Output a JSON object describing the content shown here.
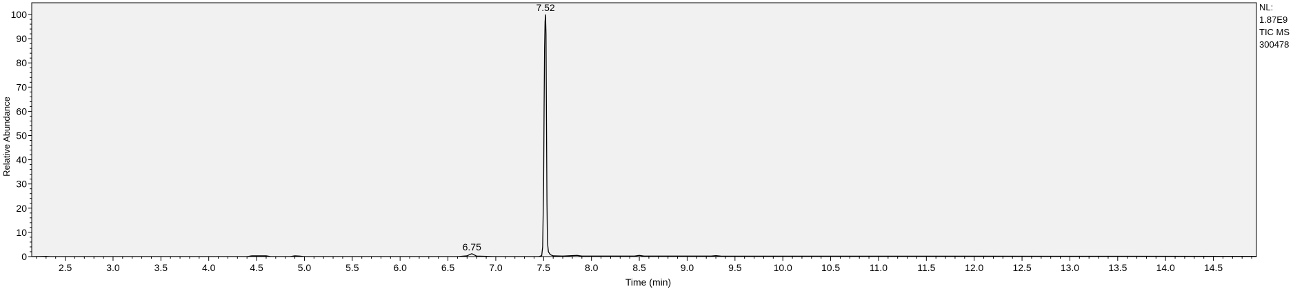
{
  "chart_data": {
    "type": "line",
    "title": "",
    "xlabel": "Time (min)",
    "ylabel": "Relative Abundance",
    "xlim": [
      2.15,
      14.95
    ],
    "ylim": [
      0,
      100
    ],
    "x_ticks": [
      "2.5",
      "3.0",
      "3.5",
      "4.0",
      "4.5",
      "5.0",
      "5.5",
      "6.0",
      "6.5",
      "7.0",
      "7.5",
      "8.0",
      "8.5",
      "9.0",
      "9.5",
      "10.0",
      "10.5",
      "11.0",
      "11.5",
      "12.0",
      "12.5",
      "13.0",
      "13.5",
      "14.0",
      "14.5"
    ],
    "y_ticks": [
      "0",
      "10",
      "20",
      "30",
      "40",
      "50",
      "60",
      "70",
      "80",
      "90",
      "100"
    ],
    "grid": false,
    "info_lines": [
      "NL:",
      "1.87E9",
      "TIC  MS",
      "300478"
    ],
    "peak_labels": [
      {
        "x": 7.52,
        "y": 100,
        "text": "7.52"
      },
      {
        "x": 6.75,
        "y": 1.2,
        "text": "6.75"
      }
    ],
    "series": [
      {
        "color": "#000000",
        "points": [
          [
            2.15,
            0
          ],
          [
            2.3,
            0.1
          ],
          [
            2.35,
            0
          ],
          [
            4.4,
            0
          ],
          [
            4.45,
            0.3
          ],
          [
            4.6,
            0.3
          ],
          [
            4.65,
            0
          ],
          [
            4.85,
            0
          ],
          [
            4.9,
            0.3
          ],
          [
            4.95,
            0.2
          ],
          [
            5.0,
            0
          ],
          [
            6.6,
            0
          ],
          [
            6.7,
            0.3
          ],
          [
            6.73,
            0.9
          ],
          [
            6.75,
            1.2
          ],
          [
            6.77,
            0.8
          ],
          [
            6.8,
            0.2
          ],
          [
            6.9,
            0.1
          ],
          [
            7.0,
            0
          ],
          [
            7.45,
            0
          ],
          [
            7.48,
            0.4
          ],
          [
            7.49,
            4
          ],
          [
            7.5,
            30
          ],
          [
            7.505,
            62
          ],
          [
            7.51,
            86
          ],
          [
            7.515,
            97
          ],
          [
            7.52,
            100
          ],
          [
            7.525,
            92
          ],
          [
            7.53,
            55
          ],
          [
            7.535,
            22
          ],
          [
            7.54,
            6
          ],
          [
            7.55,
            2
          ],
          [
            7.57,
            0.8
          ],
          [
            7.6,
            0.3
          ],
          [
            7.7,
            0.2
          ],
          [
            7.85,
            0.5
          ],
          [
            7.9,
            0.2
          ],
          [
            8.45,
            0.2
          ],
          [
            8.5,
            0.5
          ],
          [
            8.55,
            0.2
          ],
          [
            9.25,
            0.2
          ],
          [
            9.3,
            0.4
          ],
          [
            9.35,
            0.2
          ],
          [
            14.95,
            0.1
          ]
        ]
      }
    ]
  }
}
